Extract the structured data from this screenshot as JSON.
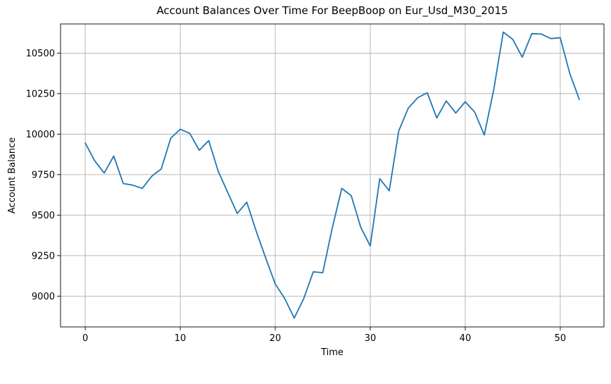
{
  "chart_data": {
    "type": "line",
    "title": "Account Balances Over Time For BeepBoop on Eur_Usd_M30_2015",
    "xlabel": "Time",
    "ylabel": "Account Balance",
    "xlim": [
      -2.6,
      54.6
    ],
    "ylim": [
      8810,
      10680
    ],
    "xticks": [
      0,
      10,
      20,
      30,
      40,
      50
    ],
    "yticks": [
      9000,
      9250,
      9500,
      9750,
      10000,
      10250,
      10500
    ],
    "grid": true,
    "legend": "none",
    "series": [
      {
        "color": "#1f77b4",
        "x": [
          0,
          1,
          2,
          3,
          4,
          5,
          6,
          7,
          8,
          9,
          10,
          11,
          12,
          13,
          14,
          15,
          16,
          17,
          18,
          19,
          20,
          21,
          22,
          23,
          24,
          25,
          26,
          27,
          28,
          29,
          30,
          31,
          32,
          33,
          34,
          35,
          36,
          37,
          38,
          39,
          40,
          41,
          42,
          43,
          44,
          45,
          46,
          47,
          48,
          49,
          50,
          51,
          52
        ],
        "y": [
          9945,
          9835,
          9760,
          9865,
          9695,
          9685,
          9665,
          9740,
          9785,
          9975,
          10030,
          10005,
          9900,
          9960,
          9770,
          9640,
          9510,
          9580,
          9400,
          9235,
          9075,
          8985,
          8865,
          8985,
          9150,
          9145,
          9420,
          9665,
          9620,
          9425,
          9310,
          9725,
          9650,
          10020,
          10160,
          10225,
          10255,
          10100,
          10205,
          10130,
          10200,
          10135,
          9995,
          10275,
          10630,
          10585,
          10475,
          10620,
          10618,
          10590,
          10595,
          10375,
          10215
        ]
      }
    ]
  }
}
